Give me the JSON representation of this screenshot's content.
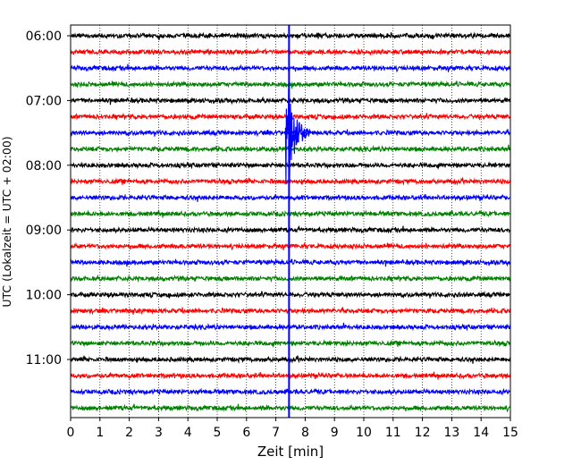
{
  "chart_data": {
    "type": "line",
    "xlabel": "Zeit  [min]",
    "ylabel": "UTC (Lokalzeit = UTC + 02:00)",
    "xlim": [
      0,
      15
    ],
    "x_ticks": [
      "0",
      "1",
      "2",
      "3",
      "4",
      "5",
      "6",
      "7",
      "8",
      "9",
      "10",
      "11",
      "12",
      "13",
      "14",
      "15"
    ],
    "y_ticks": [
      "06:00",
      "07:00",
      "08:00",
      "09:00",
      "10:00",
      "11:00"
    ],
    "grid": "vertical-dotted",
    "trace_colors": [
      "#000000",
      "#ff0000",
      "#0000ff",
      "#008000"
    ],
    "trace_starts": [
      "06:00",
      "06:15",
      "06:30",
      "06:45",
      "07:00",
      "07:15",
      "07:30",
      "07:45",
      "08:00",
      "08:15",
      "08:30",
      "08:45",
      "09:00",
      "09:15",
      "09:30",
      "09:45",
      "10:00",
      "10:15",
      "10:30",
      "10:45",
      "11:00",
      "11:15",
      "11:30",
      "11:45"
    ],
    "event": {
      "time_min": 7.45,
      "color": "#0000ff",
      "strongest_trace": "07:30"
    }
  }
}
